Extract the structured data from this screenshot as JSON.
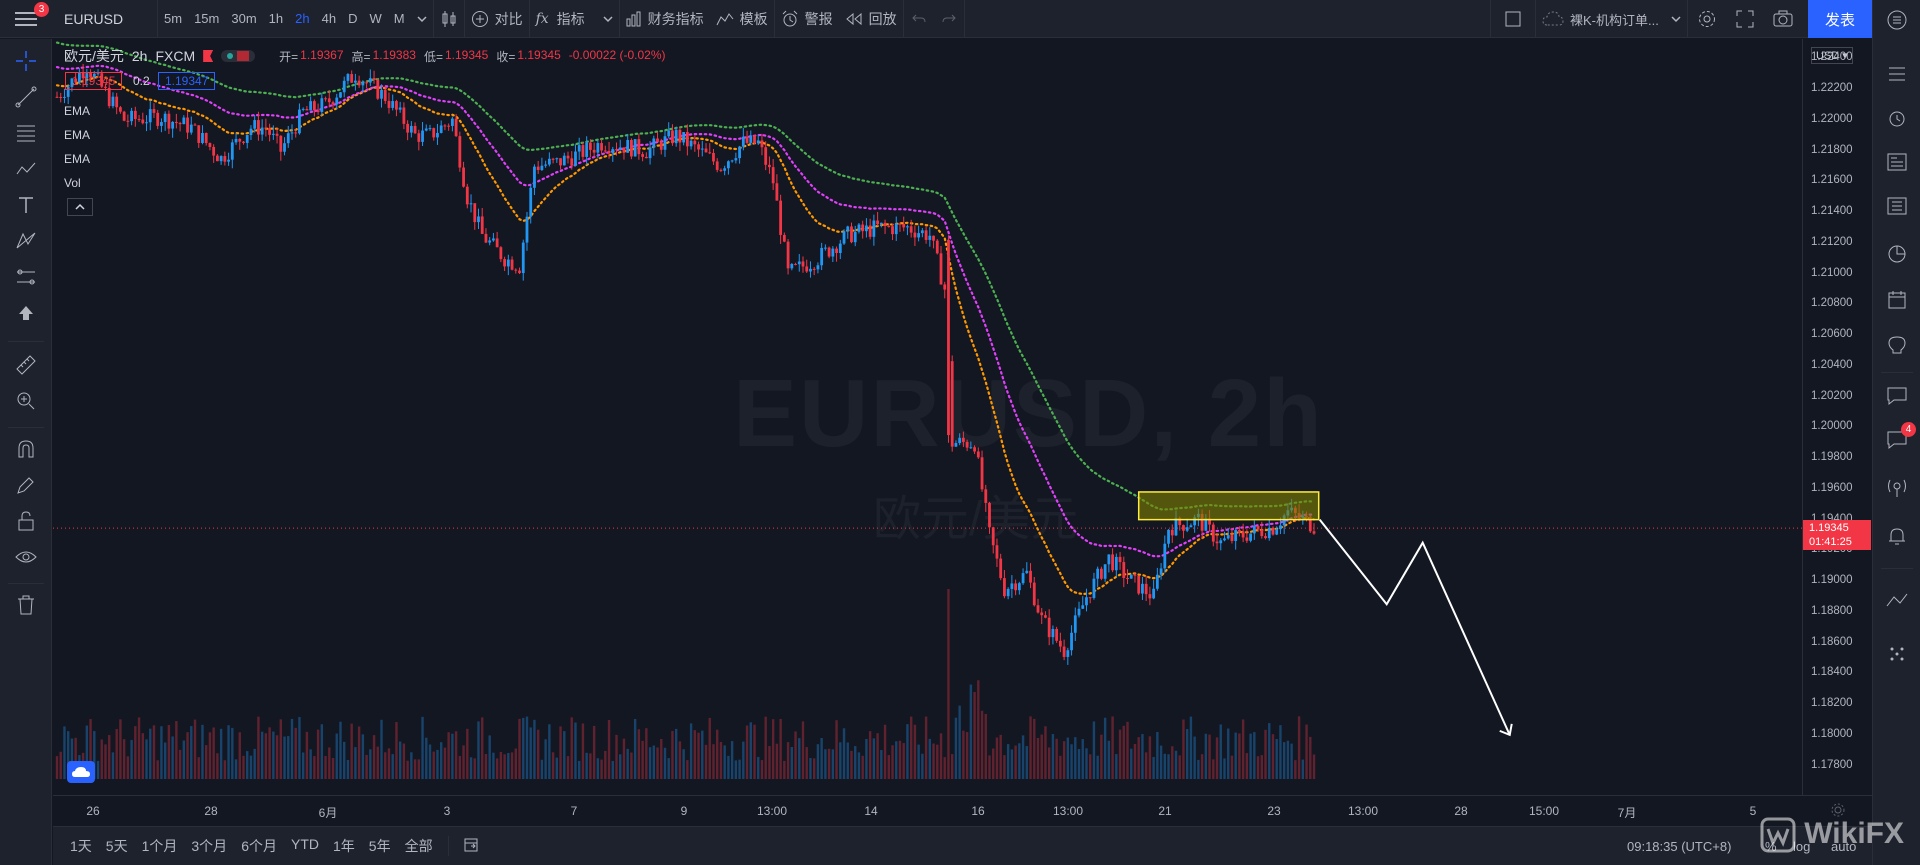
{
  "topbar": {
    "menu_badge": "3",
    "symbol": "EURUSD",
    "intervals": [
      "5m",
      "15m",
      "30m",
      "1h",
      "2h",
      "4h",
      "D",
      "W",
      "M"
    ],
    "compare_label": "对比",
    "indicators_label": "指标",
    "financials_label": "财务指标",
    "templates_label": "模板",
    "alert_label": "警报",
    "replay_label": "回放",
    "layout_name": "裸K-机构订单...",
    "publish_label": "发表"
  },
  "legend": {
    "title": "欧元/美元",
    "interval": "2h",
    "source": "FXCM",
    "open_label": "开=",
    "open": "1.19367",
    "high_label": "高=",
    "high": "1.19383",
    "low_label": "低=",
    "low": "1.19345",
    "close_label": "收=",
    "close": "1.19345",
    "change": "-0.00022 (-0.02%)",
    "sell_price": "1.19345",
    "spread": "0.2",
    "buy_price": "1.19347",
    "indicators": [
      "EMA",
      "EMA",
      "EMA",
      "Vol"
    ]
  },
  "watermark": {
    "symbol": "EURUSD, 2h",
    "name": "欧元/美元"
  },
  "price_axis": {
    "currency": "USD",
    "ticks": [
      "1.22400",
      "1.22200",
      "1.22000",
      "1.21800",
      "1.21600",
      "1.21400",
      "1.21200",
      "1.21000",
      "1.20800",
      "1.20600",
      "1.20400",
      "1.20200",
      "1.20000",
      "1.19800",
      "1.19600",
      "1.19400",
      "1.19200",
      "1.19000",
      "1.18800",
      "1.18600",
      "1.18400",
      "1.18200",
      "1.18000",
      "1.17800"
    ],
    "current_price": "1.19345",
    "countdown": "01:41:25"
  },
  "time_axis": {
    "labels": [
      "26",
      "28",
      "6月",
      "3",
      "7",
      "9",
      "13:00",
      "14",
      "16",
      "13:00",
      "21",
      "23",
      "13:00",
      "28",
      "15:00",
      "7月",
      "5"
    ]
  },
  "bottombar": {
    "ranges": [
      "1天",
      "5天",
      "1个月",
      "3个月",
      "6个月",
      "YTD",
      "1年",
      "5年",
      "全部"
    ],
    "clock": "09:18:35 (UTC+8)",
    "pct": "%",
    "log": "log",
    "auto": "auto"
  },
  "rightbar": {
    "chat_badge": "4"
  },
  "chart_data": {
    "type": "candlestick",
    "ylim": [
      1.177,
      1.225
    ],
    "colors": {
      "up": "#2196f3",
      "down": "#f23645",
      "ema_fast": "#ff9800",
      "ema_mid": "#e040fb",
      "ema_slow": "#4caf50"
    },
    "anchors": [
      [
        0,
        1.2215
      ],
      [
        8,
        1.2235
      ],
      [
        18,
        1.22
      ],
      [
        28,
        1.2202
      ],
      [
        36,
        1.2195
      ],
      [
        44,
        1.2175
      ],
      [
        52,
        1.2195
      ],
      [
        56,
        1.2195
      ],
      [
        60,
        1.218
      ],
      [
        66,
        1.2205
      ],
      [
        72,
        1.221
      ],
      [
        80,
        1.223
      ],
      [
        88,
        1.2215
      ],
      [
        96,
        1.219
      ],
      [
        100,
        1.219
      ],
      [
        106,
        1.22
      ],
      [
        110,
        1.215
      ],
      [
        114,
        1.2125
      ],
      [
        120,
        1.211
      ],
      [
        124,
        1.2105
      ],
      [
        128,
        1.217
      ],
      [
        134,
        1.2172
      ],
      [
        140,
        1.2178
      ],
      [
        146,
        1.2185
      ],
      [
        152,
        1.2183
      ],
      [
        158,
        1.218
      ],
      [
        166,
        1.219
      ],
      [
        172,
        1.218
      ],
      [
        178,
        1.217
      ],
      [
        184,
        1.2185
      ],
      [
        188,
        1.2185
      ],
      [
        192,
        1.216
      ],
      [
        196,
        1.21
      ],
      [
        204,
        1.211
      ],
      [
        212,
        1.2125
      ],
      [
        220,
        1.213
      ],
      [
        228,
        1.213
      ],
      [
        234,
        1.2125
      ],
      [
        238,
        1.209
      ],
      [
        240,
        1.199
      ],
      [
        246,
        1.199
      ],
      [
        250,
        1.193
      ],
      [
        254,
        1.1895
      ],
      [
        260,
        1.1905
      ],
      [
        264,
        1.1875
      ],
      [
        270,
        1.1855
      ],
      [
        276,
        1.189
      ],
      [
        282,
        1.1915
      ],
      [
        288,
        1.19
      ],
      [
        294,
        1.189
      ],
      [
        298,
        1.1935
      ],
      [
        306,
        1.194
      ],
      [
        312,
        1.1925
      ],
      [
        318,
        1.193
      ],
      [
        326,
        1.1935
      ],
      [
        330,
        1.1945
      ],
      [
        334,
        1.194
      ],
      [
        338,
        1.1935
      ]
    ],
    "candle_count": 338,
    "highlight_zone": {
      "y_top": 1.1958,
      "y_bottom": 1.194
    },
    "projection": [
      [
        1.194
      ],
      [
        1.1885
      ],
      [
        1.1925
      ],
      [
        1.18
      ]
    ]
  }
}
